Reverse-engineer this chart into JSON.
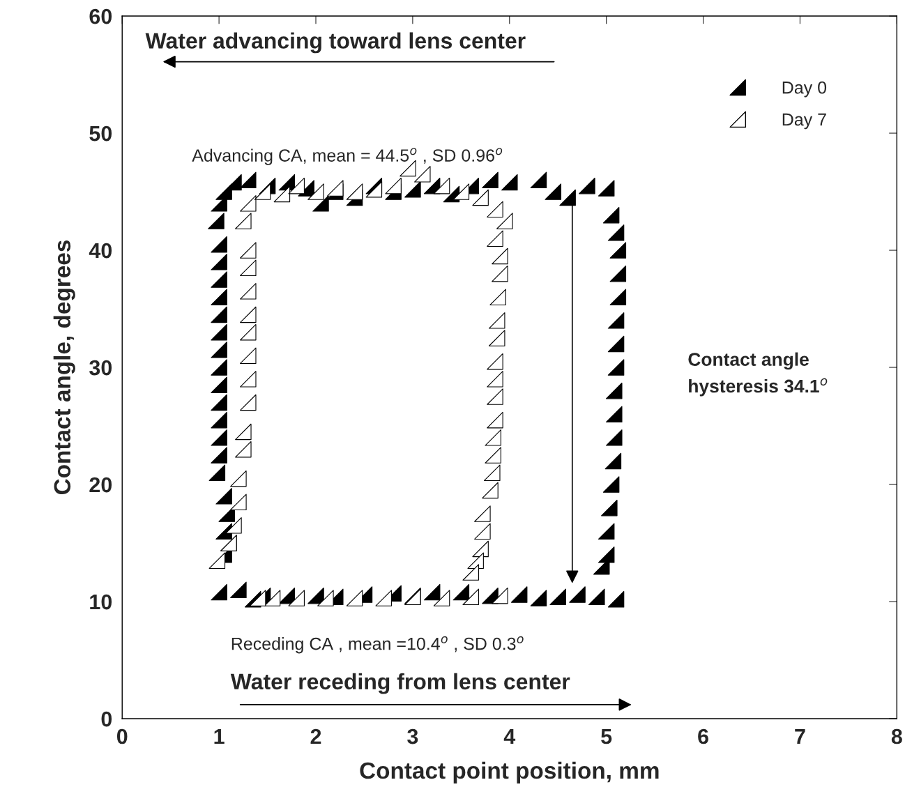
{
  "chart_data": {
    "type": "scatter",
    "xlabel": "Contact point position, mm",
    "ylabel": "Contact angle, degrees",
    "xlim": [
      0,
      8
    ],
    "ylim": [
      0,
      60
    ],
    "xticks": [
      0,
      1,
      2,
      3,
      4,
      5,
      6,
      7,
      8
    ],
    "yticks": [
      0,
      10,
      20,
      30,
      40,
      50,
      60
    ],
    "grid": false,
    "legend": "top right",
    "marker": "triangle",
    "annotations": [
      "Water advancing toward lens center",
      "Advancing CA, mean = 44.5$^{o}$ , SD 0.96$^{o}$",
      "Contact angle\nhysteresis 34.1$^{o}$",
      "Receding CA , mean =10.4$^{o}$ , SD 0.3$^{o}$",
      "Water receding from lens center"
    ],
    "series": [
      {
        "name": "Day 0",
        "color": "#000000",
        "x": [
          1.05,
          1.1,
          1.05,
          1.08,
          1.05,
          0.98,
          1.0,
          1.0,
          1.0,
          1.0,
          1.0,
          1.0,
          1.0,
          1.0,
          1.0,
          1.0,
          1.0,
          1.0,
          1.0,
          0.97,
          1.0,
          1.05,
          1.15,
          1.3,
          1.5,
          1.7,
          1.9,
          2.05,
          2.2,
          2.4,
          2.6,
          2.8,
          3.0,
          3.2,
          3.4,
          3.6,
          3.8,
          4.0,
          4.3,
          4.45,
          4.6,
          4.8,
          5.0,
          5.05,
          5.1,
          5.12,
          5.12,
          5.12,
          5.1,
          5.1,
          5.1,
          5.08,
          5.08,
          5.08,
          5.07,
          5.05,
          5.03,
          5.0,
          5.0,
          4.95,
          5.1,
          4.9,
          4.7,
          4.5,
          4.3,
          4.1,
          3.8,
          3.5,
          3.2,
          3.0,
          2.8,
          2.5,
          2.2,
          2.0,
          1.7,
          1.45,
          1.35,
          1.2,
          1.0
        ],
        "values": [
          14,
          15,
          16,
          17.5,
          19,
          21,
          22.5,
          24,
          25.5,
          27,
          28.5,
          30,
          31.5,
          33,
          34.5,
          36,
          37.5,
          39,
          40.5,
          42.5,
          44,
          45,
          45.8,
          46,
          45.5,
          45.8,
          45.3,
          44,
          45,
          44.5,
          45.5,
          45,
          45.2,
          45.5,
          44.8,
          45.5,
          46,
          45.8,
          46,
          45,
          44.5,
          45.5,
          45.3,
          43,
          41.5,
          40,
          38,
          36,
          34,
          32,
          30,
          28,
          26,
          24,
          22,
          20,
          18,
          16,
          14,
          13,
          10.2,
          10.4,
          10.6,
          10.4,
          10.3,
          10.6,
          10.5,
          10.8,
          10.8,
          10.5,
          10.7,
          10.6,
          10.4,
          10.5,
          10.5,
          10.5,
          10.2,
          11,
          10.8
        ]
      },
      {
        "name": "Day 7",
        "color": "#ffffff",
        "x": [
          0.98,
          1.1,
          1.15,
          1.2,
          1.2,
          1.25,
          1.25,
          1.3,
          1.3,
          1.3,
          1.3,
          1.3,
          1.3,
          1.3,
          1.3,
          1.25,
          1.3,
          1.45,
          1.65,
          1.8,
          2.0,
          2.2,
          2.4,
          2.6,
          2.8,
          2.95,
          3.1,
          3.3,
          3.5,
          3.7,
          3.85,
          3.95,
          3.85,
          3.9,
          3.9,
          3.88,
          3.87,
          3.87,
          3.85,
          3.85,
          3.85,
          3.85,
          3.83,
          3.83,
          3.82,
          3.8,
          3.72,
          3.72,
          3.7,
          3.65,
          3.6,
          3.9,
          3.6,
          3.3,
          3.0,
          2.7,
          2.4,
          2.1,
          1.8,
          1.55,
          1.4
        ],
        "values": [
          13.5,
          15,
          16.5,
          18.5,
          20.5,
          23,
          24.5,
          27,
          29,
          31,
          33,
          34.5,
          36.5,
          38.5,
          40,
          42.5,
          44,
          45,
          44.8,
          45.5,
          45,
          45.3,
          45,
          45.2,
          45.5,
          47,
          46.5,
          45.5,
          45,
          44.5,
          43.5,
          42.5,
          41,
          39.5,
          38,
          36,
          34,
          32.5,
          30.5,
          29,
          27.5,
          25.5,
          24,
          22.5,
          21,
          19.5,
          17.5,
          16,
          14.5,
          13.5,
          12.5,
          10.5,
          10.4,
          10.3,
          10.4,
          10.3,
          10.3,
          10.3,
          10.3,
          10.3,
          10.3
        ]
      }
    ]
  }
}
